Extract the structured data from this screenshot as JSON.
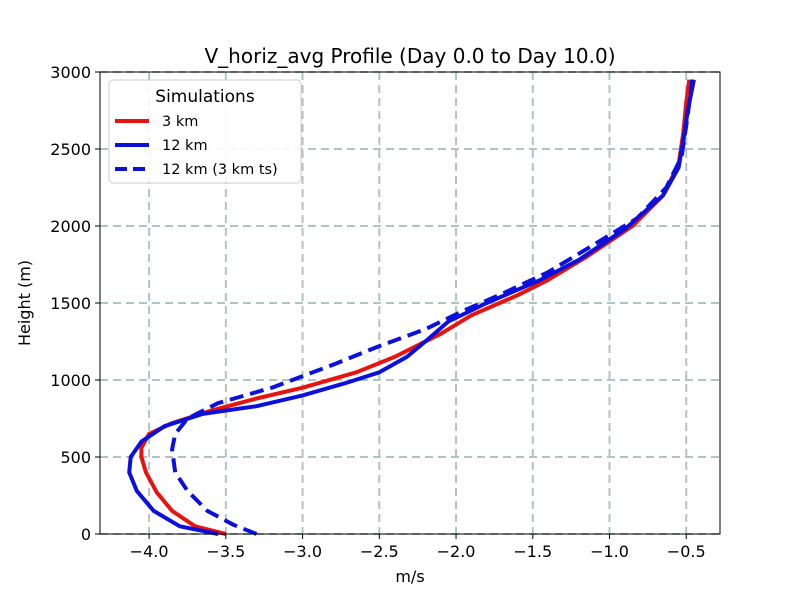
{
  "chart_data": {
    "type": "line",
    "title": "V_horiz_avg Profile (Day 0.0 to Day 10.0)",
    "xlabel": "m/s",
    "ylabel": "Height (m)",
    "xlim": [
      -4.32,
      -0.28
    ],
    "ylim": [
      0,
      3000
    ],
    "xticks": [
      -4.0,
      -3.5,
      -3.0,
      -2.5,
      -2.0,
      -1.5,
      -1.0,
      -0.5
    ],
    "xtick_labels": [
      "−4.0",
      "−3.5",
      "−3.0",
      "−2.5",
      "−2.0",
      "−1.5",
      "−1.0",
      "−0.5"
    ],
    "yticks": [
      0,
      500,
      1000,
      1500,
      2000,
      2500,
      3000
    ],
    "ytick_labels": [
      "0",
      "500",
      "1000",
      "1500",
      "2000",
      "2500",
      "3000"
    ],
    "grid": true,
    "legend": {
      "title": "Simulations",
      "position": "top-left"
    },
    "series": [
      {
        "name": "3 km",
        "color": "#e8120e",
        "style": "solid",
        "x": [
          -3.5,
          -3.7,
          -3.85,
          -3.95,
          -4.02,
          -4.05,
          -4.05,
          -4.0,
          -3.85,
          -3.6,
          -3.3,
          -3.0,
          -2.65,
          -2.4,
          -2.1,
          -1.9,
          -1.6,
          -1.4,
          -1.15,
          -0.85,
          -0.65,
          -0.55,
          -0.52,
          -0.5,
          -0.48
        ],
        "y": [
          0,
          50,
          150,
          270,
          400,
          500,
          560,
          650,
          720,
          800,
          880,
          950,
          1050,
          1150,
          1300,
          1420,
          1550,
          1650,
          1800,
          2000,
          2200,
          2400,
          2600,
          2800,
          2950
        ]
      },
      {
        "name": "12 km",
        "color": "#0b10dc",
        "style": "solid",
        "x": [
          -3.55,
          -3.8,
          -3.97,
          -4.08,
          -4.13,
          -4.12,
          -4.05,
          -3.9,
          -3.65,
          -3.3,
          -3.0,
          -2.72,
          -2.5,
          -2.32,
          -2.2,
          -2.05,
          -1.8,
          -1.45,
          -1.2,
          -0.9,
          -0.65,
          -0.55,
          -0.52,
          -0.49,
          -0.45
        ],
        "y": [
          0,
          50,
          150,
          280,
          400,
          500,
          600,
          700,
          780,
          830,
          900,
          980,
          1050,
          1150,
          1250,
          1380,
          1500,
          1650,
          1780,
          1980,
          2200,
          2380,
          2550,
          2750,
          2950
        ]
      },
      {
        "name": "12 km (3 km ts)",
        "color": "#0b10dc",
        "style": "dashed",
        "x": [
          -3.3,
          -3.45,
          -3.62,
          -3.75,
          -3.83,
          -3.85,
          -3.83,
          -3.75,
          -3.55,
          -3.2,
          -2.8,
          -2.5,
          -2.2,
          -1.95,
          -1.7,
          -1.4,
          -1.1,
          -0.82,
          -0.63,
          -0.53,
          -0.5,
          -0.48,
          -0.46
        ],
        "y": [
          0,
          60,
          150,
          280,
          400,
          550,
          650,
          750,
          850,
          950,
          1100,
          1220,
          1330,
          1450,
          1560,
          1700,
          1880,
          2050,
          2250,
          2450,
          2650,
          2800,
          2950
        ]
      }
    ]
  }
}
